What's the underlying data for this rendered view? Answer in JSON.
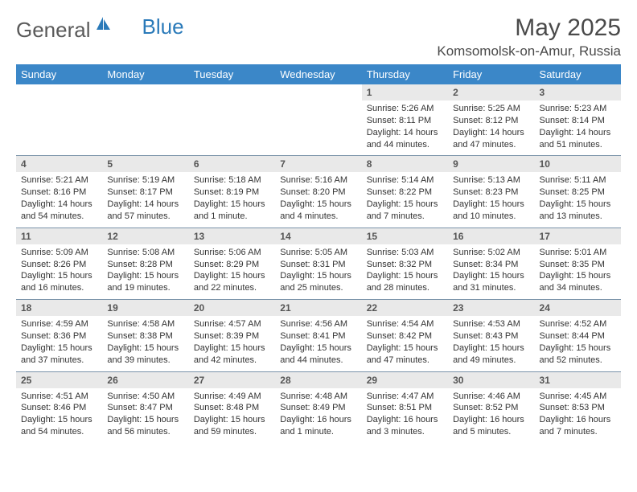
{
  "logo": {
    "general": "General",
    "blue": "Blue"
  },
  "title": "May 2025",
  "location": "Komsomolsk-on-Amur, Russia",
  "colors": {
    "header_bg": "#3b87c8",
    "header_fg": "#ffffff",
    "dayrow_bg": "#e9e9e9",
    "border": "#7a93a9",
    "text": "#333333"
  },
  "typography": {
    "title_fontsize": 30,
    "location_fontsize": 17,
    "weekday_fontsize": 13,
    "daynum_fontsize": 12,
    "info_fontsize": 11
  },
  "weekdays": [
    "Sunday",
    "Monday",
    "Tuesday",
    "Wednesday",
    "Thursday",
    "Friday",
    "Saturday"
  ],
  "weeks": [
    {
      "days": [
        null,
        null,
        null,
        null,
        {
          "n": "1",
          "sr": "Sunrise: 5:26 AM",
          "ss": "Sunset: 8:11 PM",
          "d1": "Daylight: 14 hours",
          "d2": "and 44 minutes."
        },
        {
          "n": "2",
          "sr": "Sunrise: 5:25 AM",
          "ss": "Sunset: 8:12 PM",
          "d1": "Daylight: 14 hours",
          "d2": "and 47 minutes."
        },
        {
          "n": "3",
          "sr": "Sunrise: 5:23 AM",
          "ss": "Sunset: 8:14 PM",
          "d1": "Daylight: 14 hours",
          "d2": "and 51 minutes."
        }
      ]
    },
    {
      "days": [
        {
          "n": "4",
          "sr": "Sunrise: 5:21 AM",
          "ss": "Sunset: 8:16 PM",
          "d1": "Daylight: 14 hours",
          "d2": "and 54 minutes."
        },
        {
          "n": "5",
          "sr": "Sunrise: 5:19 AM",
          "ss": "Sunset: 8:17 PM",
          "d1": "Daylight: 14 hours",
          "d2": "and 57 minutes."
        },
        {
          "n": "6",
          "sr": "Sunrise: 5:18 AM",
          "ss": "Sunset: 8:19 PM",
          "d1": "Daylight: 15 hours",
          "d2": "and 1 minute."
        },
        {
          "n": "7",
          "sr": "Sunrise: 5:16 AM",
          "ss": "Sunset: 8:20 PM",
          "d1": "Daylight: 15 hours",
          "d2": "and 4 minutes."
        },
        {
          "n": "8",
          "sr": "Sunrise: 5:14 AM",
          "ss": "Sunset: 8:22 PM",
          "d1": "Daylight: 15 hours",
          "d2": "and 7 minutes."
        },
        {
          "n": "9",
          "sr": "Sunrise: 5:13 AM",
          "ss": "Sunset: 8:23 PM",
          "d1": "Daylight: 15 hours",
          "d2": "and 10 minutes."
        },
        {
          "n": "10",
          "sr": "Sunrise: 5:11 AM",
          "ss": "Sunset: 8:25 PM",
          "d1": "Daylight: 15 hours",
          "d2": "and 13 minutes."
        }
      ]
    },
    {
      "days": [
        {
          "n": "11",
          "sr": "Sunrise: 5:09 AM",
          "ss": "Sunset: 8:26 PM",
          "d1": "Daylight: 15 hours",
          "d2": "and 16 minutes."
        },
        {
          "n": "12",
          "sr": "Sunrise: 5:08 AM",
          "ss": "Sunset: 8:28 PM",
          "d1": "Daylight: 15 hours",
          "d2": "and 19 minutes."
        },
        {
          "n": "13",
          "sr": "Sunrise: 5:06 AM",
          "ss": "Sunset: 8:29 PM",
          "d1": "Daylight: 15 hours",
          "d2": "and 22 minutes."
        },
        {
          "n": "14",
          "sr": "Sunrise: 5:05 AM",
          "ss": "Sunset: 8:31 PM",
          "d1": "Daylight: 15 hours",
          "d2": "and 25 minutes."
        },
        {
          "n": "15",
          "sr": "Sunrise: 5:03 AM",
          "ss": "Sunset: 8:32 PM",
          "d1": "Daylight: 15 hours",
          "d2": "and 28 minutes."
        },
        {
          "n": "16",
          "sr": "Sunrise: 5:02 AM",
          "ss": "Sunset: 8:34 PM",
          "d1": "Daylight: 15 hours",
          "d2": "and 31 minutes."
        },
        {
          "n": "17",
          "sr": "Sunrise: 5:01 AM",
          "ss": "Sunset: 8:35 PM",
          "d1": "Daylight: 15 hours",
          "d2": "and 34 minutes."
        }
      ]
    },
    {
      "days": [
        {
          "n": "18",
          "sr": "Sunrise: 4:59 AM",
          "ss": "Sunset: 8:36 PM",
          "d1": "Daylight: 15 hours",
          "d2": "and 37 minutes."
        },
        {
          "n": "19",
          "sr": "Sunrise: 4:58 AM",
          "ss": "Sunset: 8:38 PM",
          "d1": "Daylight: 15 hours",
          "d2": "and 39 minutes."
        },
        {
          "n": "20",
          "sr": "Sunrise: 4:57 AM",
          "ss": "Sunset: 8:39 PM",
          "d1": "Daylight: 15 hours",
          "d2": "and 42 minutes."
        },
        {
          "n": "21",
          "sr": "Sunrise: 4:56 AM",
          "ss": "Sunset: 8:41 PM",
          "d1": "Daylight: 15 hours",
          "d2": "and 44 minutes."
        },
        {
          "n": "22",
          "sr": "Sunrise: 4:54 AM",
          "ss": "Sunset: 8:42 PM",
          "d1": "Daylight: 15 hours",
          "d2": "and 47 minutes."
        },
        {
          "n": "23",
          "sr": "Sunrise: 4:53 AM",
          "ss": "Sunset: 8:43 PM",
          "d1": "Daylight: 15 hours",
          "d2": "and 49 minutes."
        },
        {
          "n": "24",
          "sr": "Sunrise: 4:52 AM",
          "ss": "Sunset: 8:44 PM",
          "d1": "Daylight: 15 hours",
          "d2": "and 52 minutes."
        }
      ]
    },
    {
      "days": [
        {
          "n": "25",
          "sr": "Sunrise: 4:51 AM",
          "ss": "Sunset: 8:46 PM",
          "d1": "Daylight: 15 hours",
          "d2": "and 54 minutes."
        },
        {
          "n": "26",
          "sr": "Sunrise: 4:50 AM",
          "ss": "Sunset: 8:47 PM",
          "d1": "Daylight: 15 hours",
          "d2": "and 56 minutes."
        },
        {
          "n": "27",
          "sr": "Sunrise: 4:49 AM",
          "ss": "Sunset: 8:48 PM",
          "d1": "Daylight: 15 hours",
          "d2": "and 59 minutes."
        },
        {
          "n": "28",
          "sr": "Sunrise: 4:48 AM",
          "ss": "Sunset: 8:49 PM",
          "d1": "Daylight: 16 hours",
          "d2": "and 1 minute."
        },
        {
          "n": "29",
          "sr": "Sunrise: 4:47 AM",
          "ss": "Sunset: 8:51 PM",
          "d1": "Daylight: 16 hours",
          "d2": "and 3 minutes."
        },
        {
          "n": "30",
          "sr": "Sunrise: 4:46 AM",
          "ss": "Sunset: 8:52 PM",
          "d1": "Daylight: 16 hours",
          "d2": "and 5 minutes."
        },
        {
          "n": "31",
          "sr": "Sunrise: 4:45 AM",
          "ss": "Sunset: 8:53 PM",
          "d1": "Daylight: 16 hours",
          "d2": "and 7 minutes."
        }
      ]
    }
  ]
}
